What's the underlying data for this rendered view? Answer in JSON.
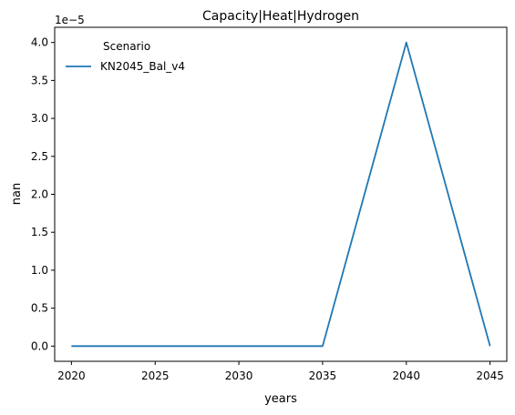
{
  "chart_data": {
    "type": "line",
    "title": "Capacity|Heat|Hydrogen",
    "xlabel": "years",
    "ylabel": "nan",
    "y_offset_label": "1e−5",
    "x": [
      2020,
      2025,
      2030,
      2035,
      2040,
      2045
    ],
    "series": [
      {
        "name": "KN2045_Bal_v4",
        "values": [
          0.0,
          0.0,
          0.0,
          0.0,
          4.0,
          0.0
        ],
        "color": "#1f77b4"
      }
    ],
    "xlim": [
      2019,
      2046
    ],
    "ylim": [
      -0.2,
      4.2
    ],
    "x_ticks": [
      2020,
      2025,
      2030,
      2035,
      2040,
      2045
    ],
    "x_tick_labels": [
      "2020",
      "2025",
      "2030",
      "2035",
      "2040",
      "2045"
    ],
    "y_ticks": [
      0.0,
      0.5,
      1.0,
      1.5,
      2.0,
      2.5,
      3.0,
      3.5,
      4.0
    ],
    "y_tick_labels": [
      "0.0",
      "0.5",
      "1.0",
      "1.5",
      "2.0",
      "2.5",
      "3.0",
      "3.5",
      "4.0"
    ],
    "legend": {
      "title": "Scenario",
      "placement": "top-left"
    },
    "grid": false
  }
}
